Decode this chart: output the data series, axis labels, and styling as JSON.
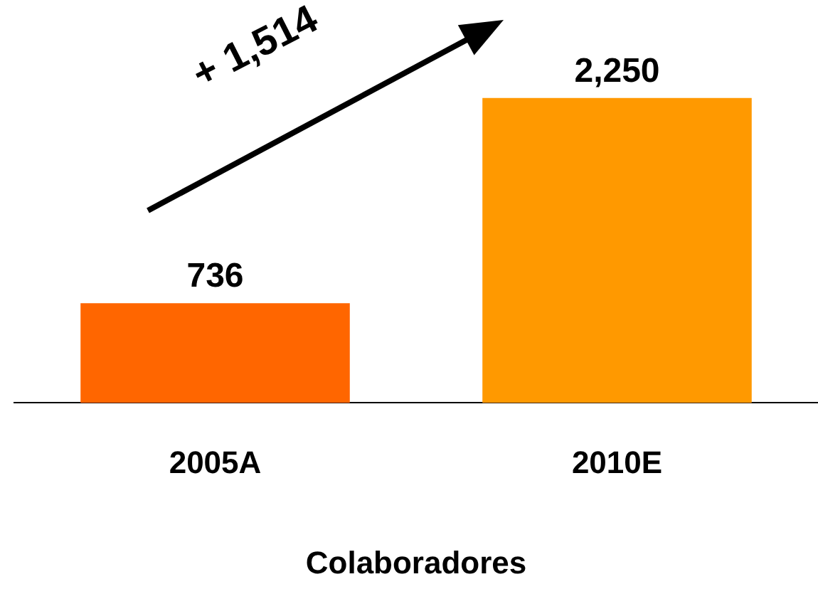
{
  "chart_data": {
    "type": "bar",
    "categories": [
      "2005A",
      "2010E"
    ],
    "values": [
      736,
      2250
    ],
    "colors": [
      "#ff6600",
      "#ff9900"
    ],
    "value_labels": [
      "736",
      "2,250"
    ],
    "xlabel": "Colaboradores",
    "annotations": [
      "+ 1,514"
    ],
    "legend": false,
    "grid": false
  }
}
